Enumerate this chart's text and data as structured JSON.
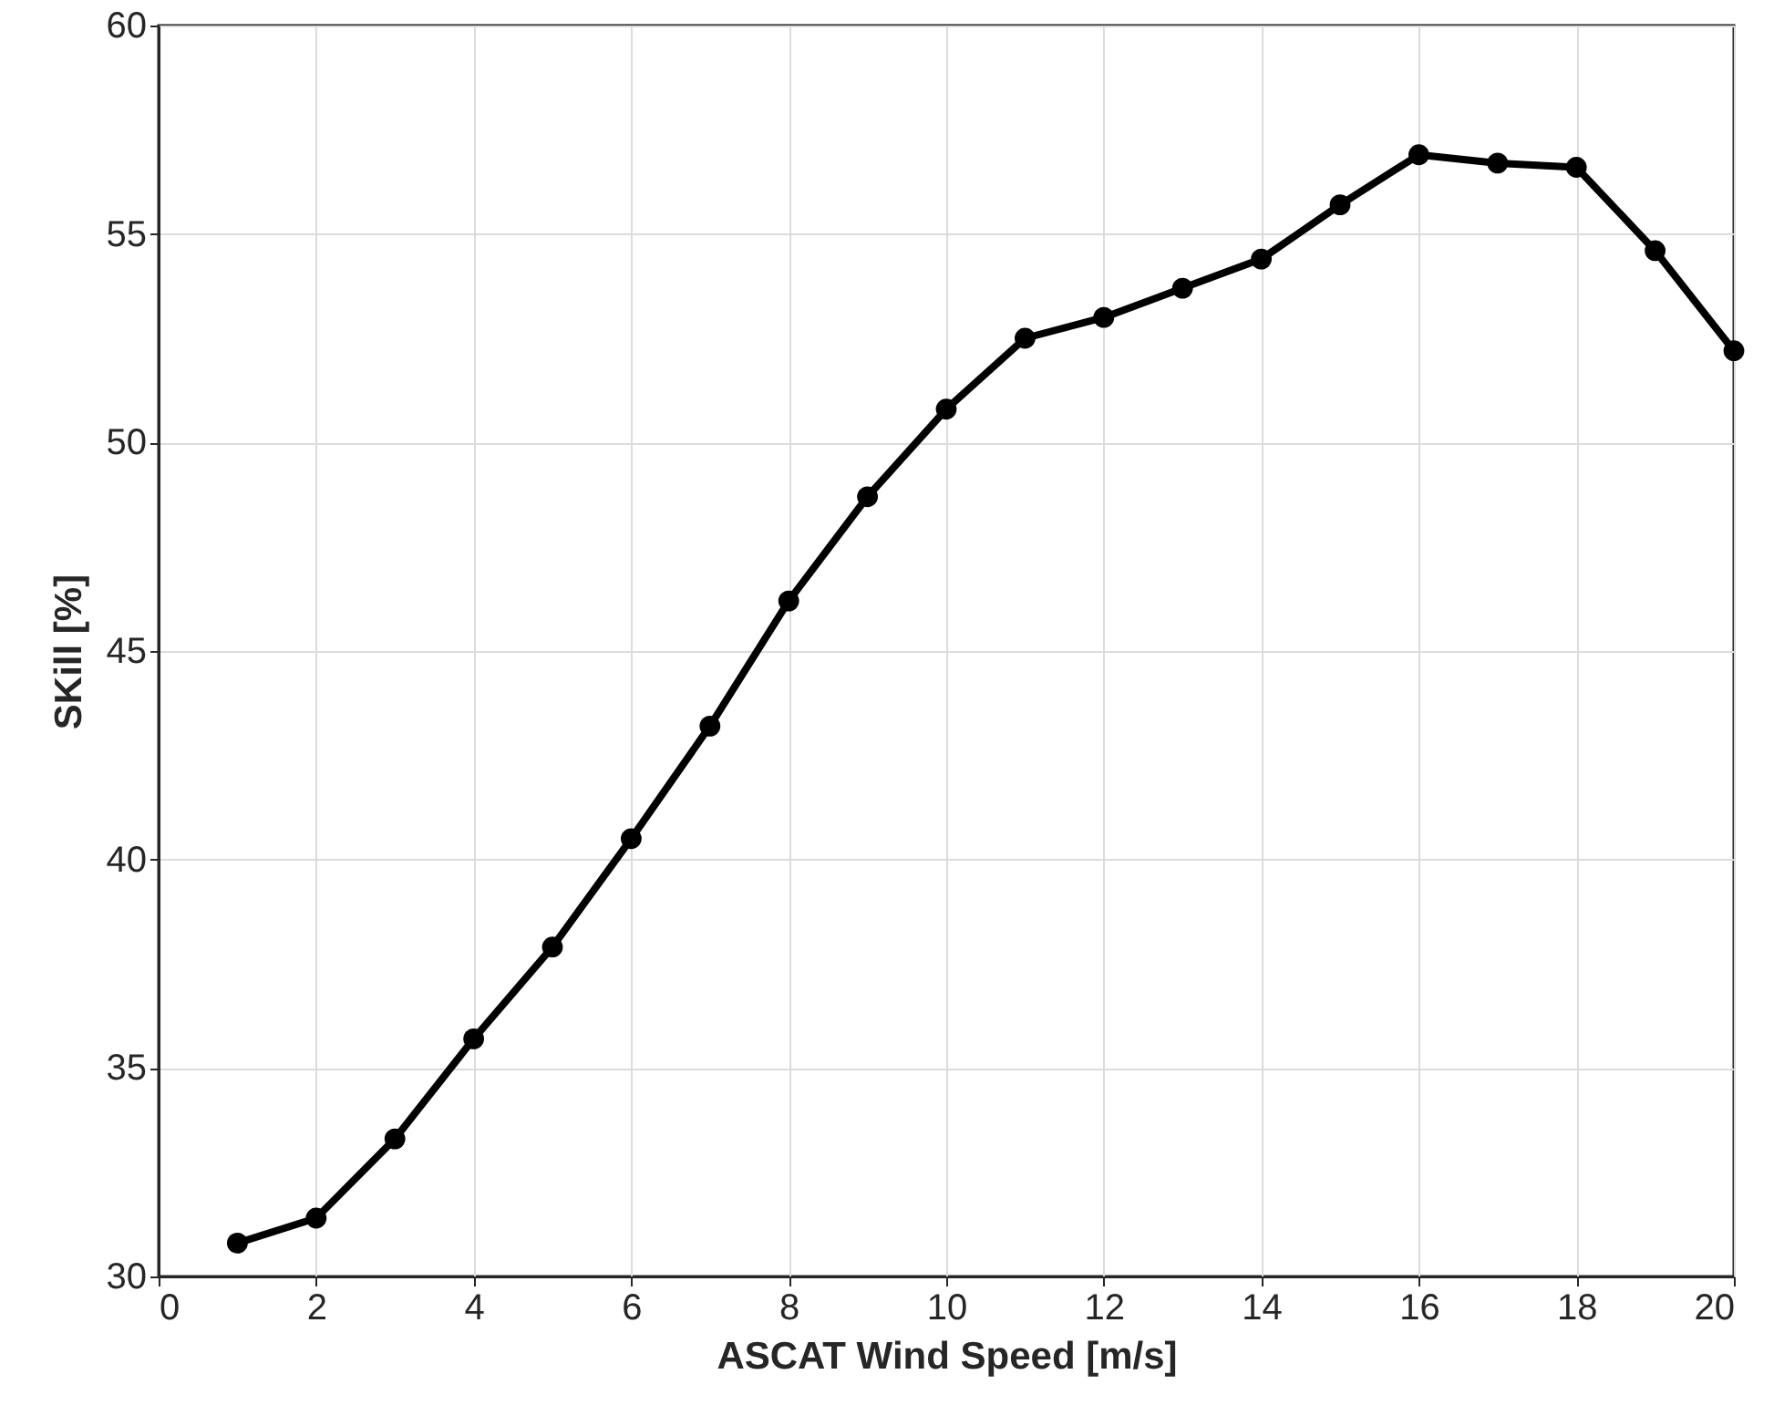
{
  "chart_data": {
    "type": "line",
    "xlabel": "ASCAT Wind Speed [m/s]",
    "ylabel": "SKill [%]",
    "x": [
      1,
      2,
      3,
      4,
      5,
      6,
      7,
      8,
      9,
      10,
      11,
      12,
      13,
      14,
      15,
      16,
      17,
      18,
      19,
      20
    ],
    "series": [
      {
        "color": "#000000",
        "values": [
          30.8,
          31.4,
          33.3,
          35.7,
          37.9,
          40.5,
          43.2,
          46.2,
          48.7,
          50.8,
          52.5,
          53.0,
          53.7,
          54.4,
          55.7,
          56.9,
          56.7,
          56.6,
          54.6,
          52.2
        ]
      }
    ],
    "xlim": [
      0,
      20
    ],
    "xticks": [
      0,
      2,
      4,
      6,
      8,
      10,
      12,
      14,
      16,
      18,
      20
    ],
    "ylim": [
      30,
      60
    ],
    "yticks": [
      30,
      35,
      40,
      45,
      50,
      55,
      60
    ],
    "grid": true,
    "marker": "circle",
    "line_style": "solid"
  }
}
